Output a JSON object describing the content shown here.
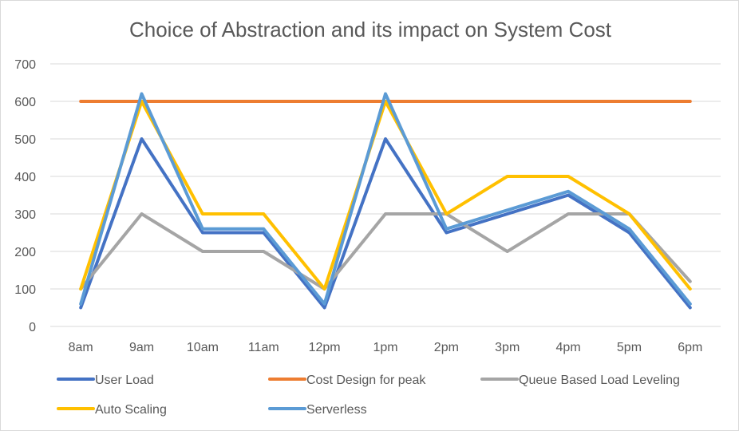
{
  "chart_data": {
    "type": "line",
    "title": "Choice of Abstraction and its impact on System Cost",
    "xlabel": "",
    "ylabel": "",
    "categories": [
      "8am",
      "9am",
      "10am",
      "11am",
      "12pm",
      "1pm",
      "2pm",
      "3pm",
      "4pm",
      "5pm",
      "6pm"
    ],
    "ylim": [
      0,
      700
    ],
    "yticks": [
      "0",
      "100",
      "200",
      "300",
      "400",
      "500",
      "600",
      "700"
    ],
    "grid": true,
    "legend_position": "bottom",
    "series": [
      {
        "name": "User Load",
        "color": "#4472C4",
        "values": [
          50,
          500,
          250,
          250,
          50,
          500,
          250,
          300,
          350,
          250,
          50
        ]
      },
      {
        "name": "Cost Design for peak",
        "color": "#ED7D31",
        "values": [
          600,
          600,
          600,
          600,
          600,
          600,
          600,
          600,
          600,
          600,
          600
        ]
      },
      {
        "name": "Queue Based Load Leveling",
        "color": "#A5A5A5",
        "values": [
          100,
          300,
          200,
          200,
          100,
          300,
          300,
          200,
          300,
          300,
          120
        ]
      },
      {
        "name": "Auto Scaling",
        "color": "#FFC000",
        "values": [
          100,
          600,
          300,
          300,
          100,
          600,
          300,
          400,
          400,
          300,
          100
        ]
      },
      {
        "name": "Serverless",
        "color": "#5B9BD5",
        "values": [
          60,
          620,
          260,
          260,
          60,
          620,
          260,
          310,
          360,
          260,
          60
        ]
      }
    ]
  }
}
